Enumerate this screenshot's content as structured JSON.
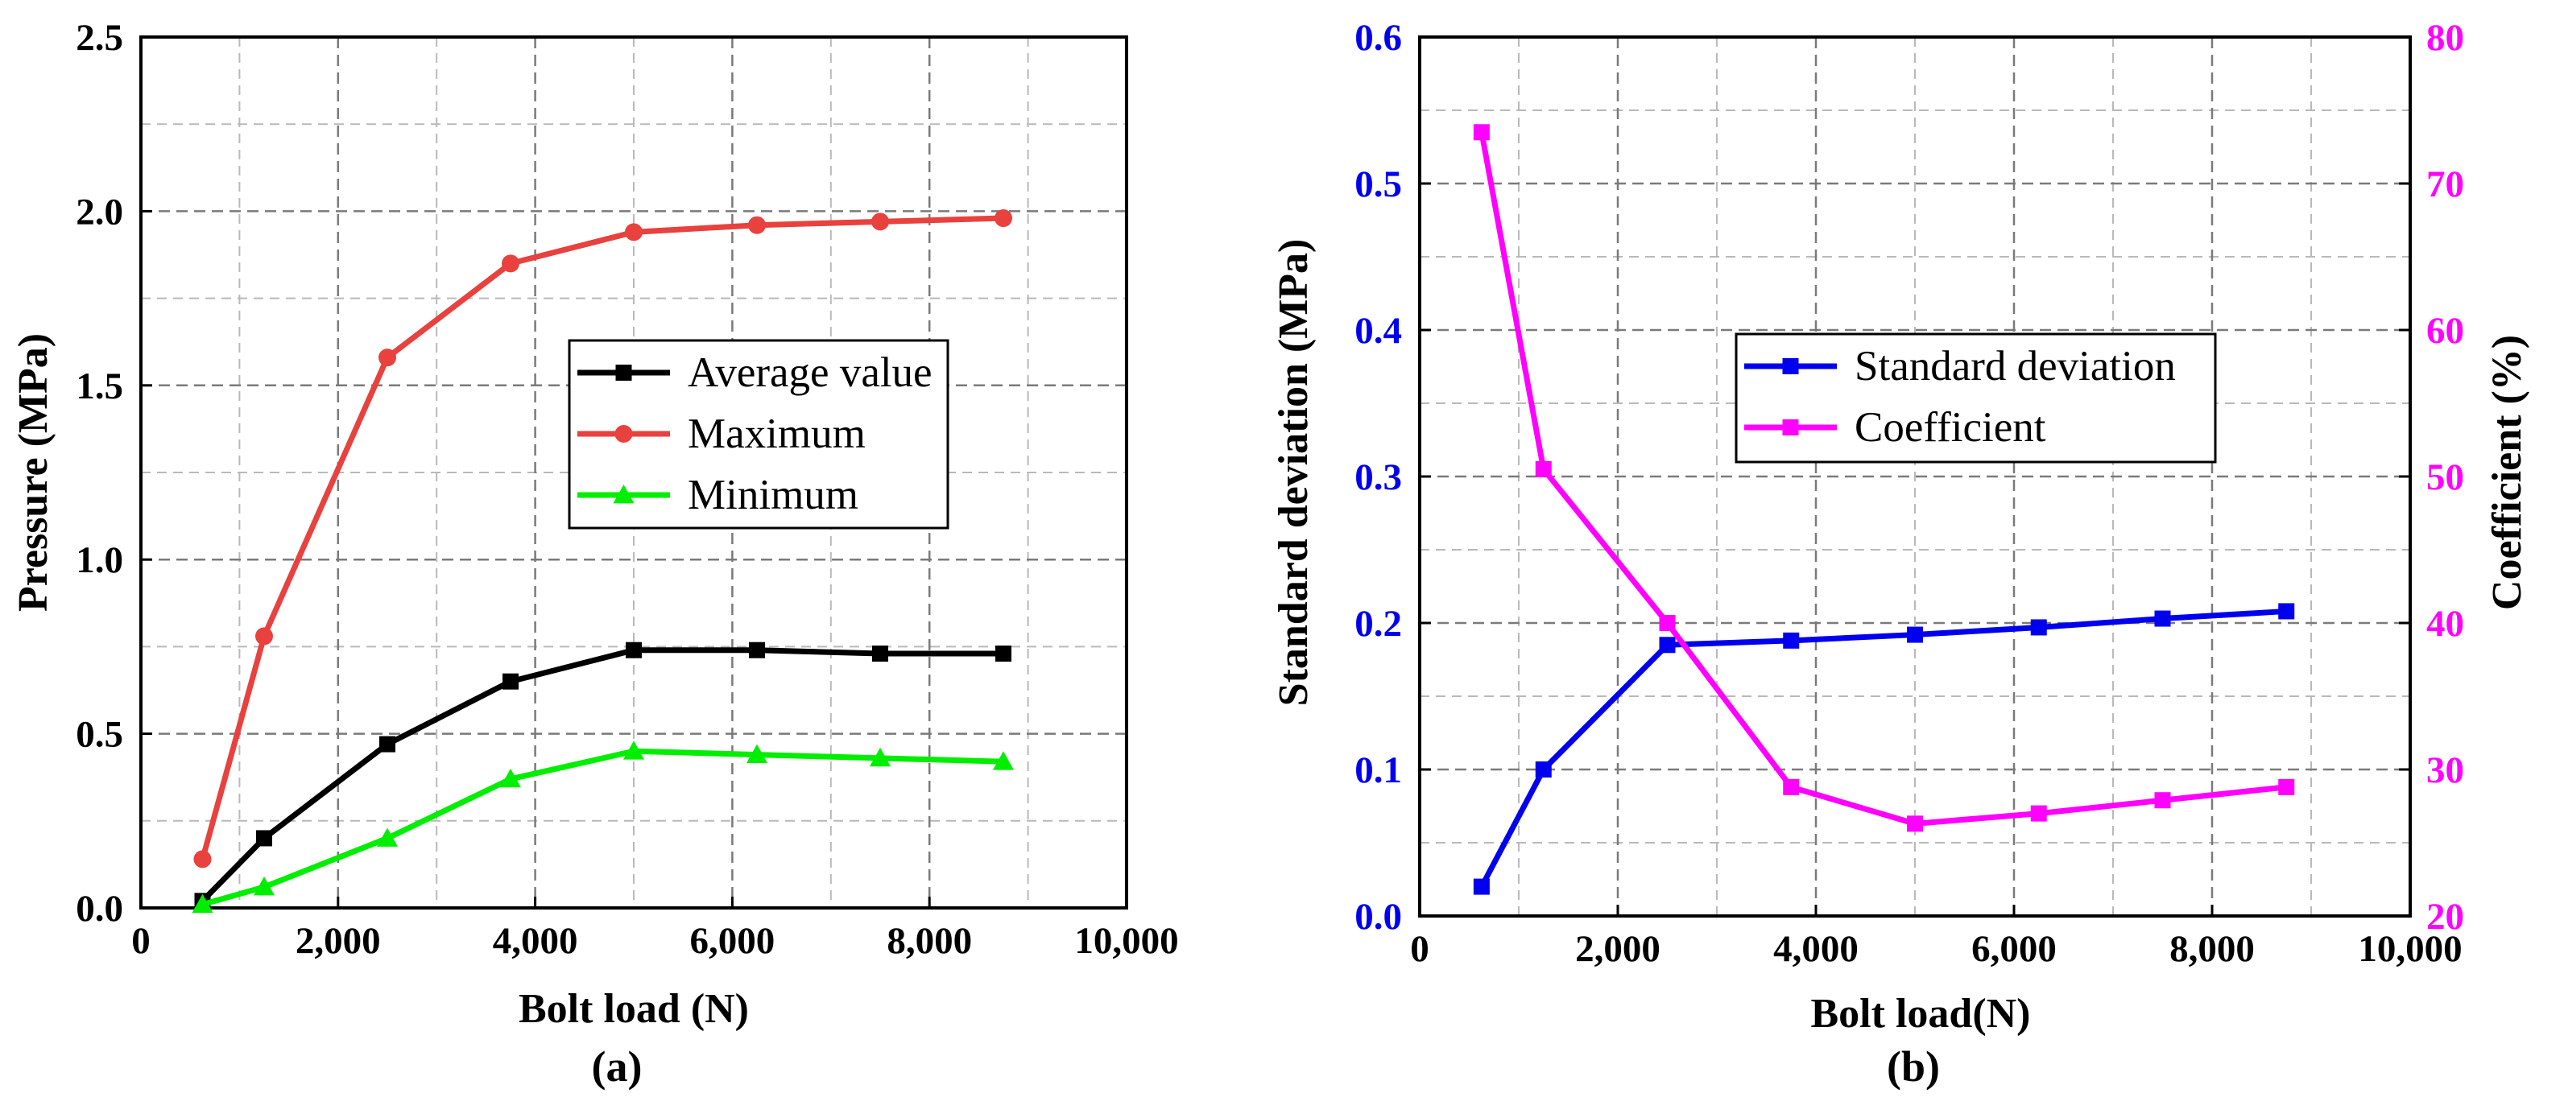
{
  "figure": {
    "panels": [
      "(a)",
      "(b)"
    ]
  },
  "chart_data": [
    {
      "type": "line",
      "title": "",
      "panel_label": "(a)",
      "xlabel": "Bolt load (N)",
      "ylabel": "Pressure (MPa)",
      "xlim": [
        0,
        10000
      ],
      "ylim": [
        0,
        2.5
      ],
      "x_ticks": [
        0,
        2000,
        4000,
        6000,
        8000,
        10000
      ],
      "x_tick_labels": [
        "0",
        "2,000",
        "4,000",
        "6,000",
        "8,000",
        "10,000"
      ],
      "y_ticks": [
        0,
        0.5,
        1.0,
        1.5,
        2.0,
        2.5
      ],
      "y_tick_labels": [
        "0.0",
        "0.5",
        "1.0",
        "1.5",
        "2.0",
        "2.5"
      ],
      "grid": true,
      "legend_position": "center-right",
      "x": [
        625,
        1250,
        2500,
        3750,
        5000,
        6250,
        7500,
        8750
      ],
      "series": [
        {
          "name": "Average value",
          "color": "#000000",
          "marker": "square",
          "values": [
            0.02,
            0.2,
            0.47,
            0.65,
            0.74,
            0.74,
            0.73,
            0.73
          ]
        },
        {
          "name": "Maximum",
          "color": "#e8413e",
          "marker": "circle",
          "values": [
            0.14,
            0.78,
            1.58,
            1.85,
            1.94,
            1.96,
            1.97,
            1.98
          ]
        },
        {
          "name": "Minimum",
          "color": "#00ee00",
          "marker": "triangle",
          "values": [
            0.01,
            0.06,
            0.2,
            0.37,
            0.45,
            0.44,
            0.43,
            0.42
          ]
        }
      ]
    },
    {
      "type": "line",
      "title": "",
      "panel_label": "(b)",
      "xlabel": "Bolt load(N)",
      "ylabel": "Standard deviation (MPa)",
      "y2label": "Coefficient (%)",
      "xlim": [
        0,
        10000
      ],
      "ylim": [
        0,
        0.6
      ],
      "y2lim": [
        20,
        80
      ],
      "x_ticks": [
        0,
        2000,
        4000,
        6000,
        8000,
        10000
      ],
      "x_tick_labels": [
        "0",
        "2,000",
        "4,000",
        "6,000",
        "8,000",
        "10,000"
      ],
      "y_ticks": [
        0,
        0.1,
        0.2,
        0.3,
        0.4,
        0.5,
        0.6
      ],
      "y_tick_labels": [
        "0.0",
        "0.1",
        "0.2",
        "0.3",
        "0.4",
        "0.5",
        "0.6"
      ],
      "y2_ticks": [
        20,
        30,
        40,
        50,
        60,
        70,
        80
      ],
      "y2_tick_labels": [
        "20",
        "30",
        "40",
        "50",
        "60",
        "70",
        "80"
      ],
      "grid": true,
      "legend_position": "center",
      "x": [
        625,
        1250,
        2500,
        3750,
        5000,
        6250,
        7500,
        8750
      ],
      "series": [
        {
          "name": "Standard deviation",
          "color": "#0000ee",
          "marker": "square",
          "axis": "left",
          "values": [
            0.02,
            0.1,
            0.185,
            0.188,
            0.192,
            0.197,
            0.203,
            0.208
          ]
        },
        {
          "name": "Coefficient",
          "color": "#ff00ff",
          "marker": "square",
          "axis": "right",
          "values": [
            73.5,
            50.5,
            40.0,
            28.8,
            26.3,
            27.0,
            27.9,
            28.8
          ]
        }
      ]
    }
  ]
}
